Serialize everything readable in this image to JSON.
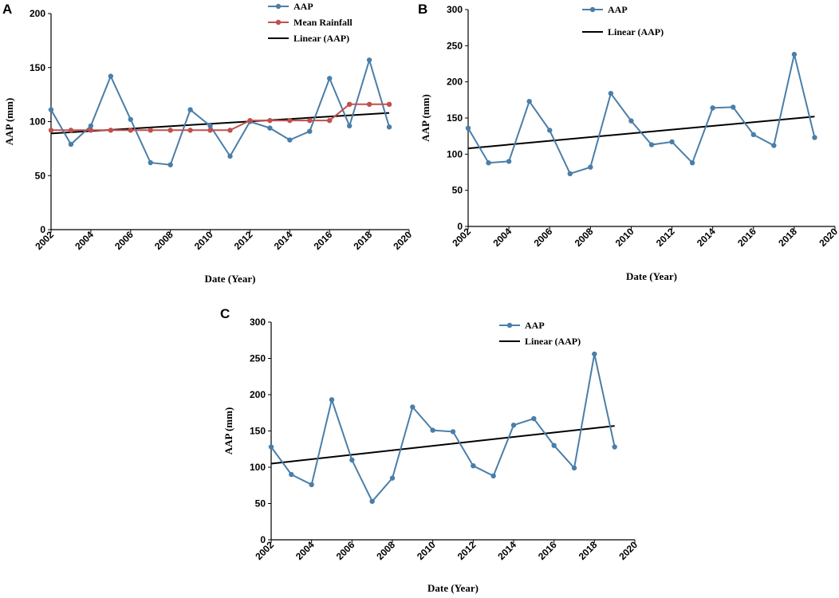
{
  "chart_data": [
    {
      "panel": "A",
      "type": "line",
      "xlabel": "Date (Year)",
      "ylabel": "AAP (mm)",
      "xlim": [
        2002,
        2020
      ],
      "ylim": [
        0,
        200
      ],
      "xticks": [
        "2002",
        "2004",
        "2006",
        "2008",
        "2010",
        "2012",
        "2014",
        "2016",
        "2018",
        "2020"
      ],
      "yticks": [
        "0",
        "50",
        "100",
        "150",
        "200"
      ],
      "x": [
        2002,
        2003,
        2004,
        2005,
        2006,
        2007,
        2008,
        2009,
        2010,
        2011,
        2012,
        2013,
        2014,
        2015,
        2016,
        2017,
        2018,
        2019
      ],
      "series": [
        {
          "name": "AAP",
          "color": "#4a7ea8",
          "values": [
            111,
            79,
            96,
            142,
            102,
            62,
            60,
            111,
            96,
            68,
            100,
            94,
            83,
            91,
            140,
            96,
            157,
            95
          ]
        },
        {
          "name": "Mean Rainfall",
          "color": "#c0504d",
          "values": [
            92,
            92,
            92,
            92,
            92,
            92,
            92,
            92,
            92,
            92,
            101,
            101,
            101,
            101,
            101,
            116,
            116,
            116
          ]
        }
      ],
      "trend": {
        "name": "Linear (AAP)",
        "color": "#000000",
        "from": [
          2002,
          89
        ],
        "to": [
          2019,
          108
        ]
      }
    },
    {
      "panel": "B",
      "type": "line",
      "xlabel": "Date (Year)",
      "ylabel": "AAP (mm)",
      "xlim": [
        2002,
        2020
      ],
      "ylim": [
        0,
        300
      ],
      "xticks": [
        "2002",
        "2004",
        "2006",
        "2008",
        "2010",
        "2012",
        "2014",
        "2016",
        "2018",
        "2020"
      ],
      "yticks": [
        "0",
        "50",
        "100",
        "150",
        "200",
        "250",
        "300"
      ],
      "x": [
        2002,
        2003,
        2004,
        2005,
        2006,
        2007,
        2008,
        2009,
        2010,
        2011,
        2012,
        2013,
        2014,
        2015,
        2016,
        2017,
        2018,
        2019
      ],
      "series": [
        {
          "name": "AAP",
          "color": "#4a7ea8",
          "values": [
            136,
            88,
            90,
            173,
            133,
            73,
            82,
            184,
            146,
            113,
            117,
            88,
            164,
            165,
            127,
            112,
            238,
            123
          ]
        }
      ],
      "trend": {
        "name": "Linear (AAP)",
        "color": "#000000",
        "from": [
          2002,
          108
        ],
        "to": [
          2019,
          152
        ]
      }
    },
    {
      "panel": "C",
      "type": "line",
      "xlabel": "Date (Year)",
      "ylabel": "AAP (mm)",
      "xlim": [
        2002,
        2020
      ],
      "ylim": [
        0,
        300
      ],
      "xticks": [
        "2002",
        "2004",
        "2006",
        "2008",
        "2010",
        "2012",
        "2014",
        "2016",
        "2018",
        "2020"
      ],
      "yticks": [
        "0",
        "50",
        "100",
        "150",
        "200",
        "250",
        "300"
      ],
      "x": [
        2002,
        2003,
        2004,
        2005,
        2006,
        2007,
        2008,
        2009,
        2010,
        2011,
        2012,
        2013,
        2014,
        2015,
        2016,
        2017,
        2018,
        2019
      ],
      "series": [
        {
          "name": "AAP",
          "color": "#4a7ea8",
          "values": [
            128,
            90,
            76,
            193,
            110,
            53,
            85,
            183,
            151,
            149,
            102,
            88,
            158,
            167,
            130,
            99,
            256,
            128
          ]
        }
      ],
      "trend": {
        "name": "Linear (AAP)",
        "color": "#000000",
        "from": [
          2002,
          105
        ],
        "to": [
          2019,
          157
        ]
      }
    }
  ]
}
